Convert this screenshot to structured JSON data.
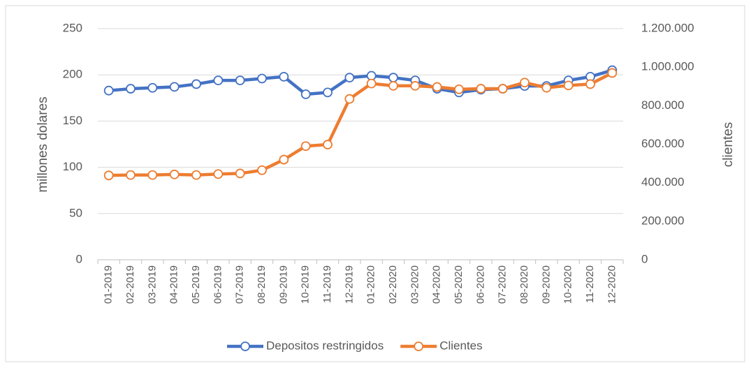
{
  "chart_data": {
    "type": "line",
    "categories": [
      "01-2019",
      "02-2019",
      "03-2019",
      "04-2019",
      "05-2019",
      "06-2019",
      "07-2019",
      "08-2019",
      "09-2019",
      "10-2019",
      "11-2019",
      "12-2019",
      "01-2020",
      "02-2020",
      "03-2020",
      "04-2020",
      "05-2020",
      "06-2020",
      "07-2020",
      "08-2020",
      "09-2020",
      "10-2020",
      "11-2020",
      "12-2020"
    ],
    "series": [
      {
        "name": "Depositos restringidos",
        "color": "#4472c4",
        "values": [
          183,
          185,
          186,
          187,
          190,
          194,
          194,
          196,
          198,
          179,
          181,
          197,
          199,
          197,
          194,
          185,
          181,
          184,
          185,
          188,
          188,
          194,
          198,
          205
        ]
      },
      {
        "name": "Clientes",
        "color": "#ed7d31",
        "axis": "y2",
        "values": [
          438000,
          440000,
          440000,
          443000,
          440000,
          445000,
          448000,
          465000,
          520000,
          590000,
          598000,
          835000,
          915000,
          903000,
          903000,
          897000,
          885000,
          888000,
          888000,
          920000,
          893000,
          905000,
          912000,
          970000
        ]
      }
    ],
    "y_label": "millones dolares",
    "y2_label": "clientes",
    "ylim": [
      0,
      250
    ],
    "yticks": [
      0,
      50,
      100,
      150,
      200,
      250
    ],
    "y2lim": [
      0,
      1200000
    ],
    "y2ticks": [
      0,
      {
        "value": 200000,
        "label": "200.000"
      },
      {
        "value": 400000,
        "label": "400.000"
      },
      {
        "value": 600000,
        "label": "600.000"
      },
      {
        "value": 800000,
        "label": "800.000"
      },
      {
        "value": 1000000,
        "label": "1.000.000"
      },
      {
        "value": 1200000,
        "label": "1.200.000"
      }
    ],
    "grid": true,
    "legend": "bottom"
  }
}
